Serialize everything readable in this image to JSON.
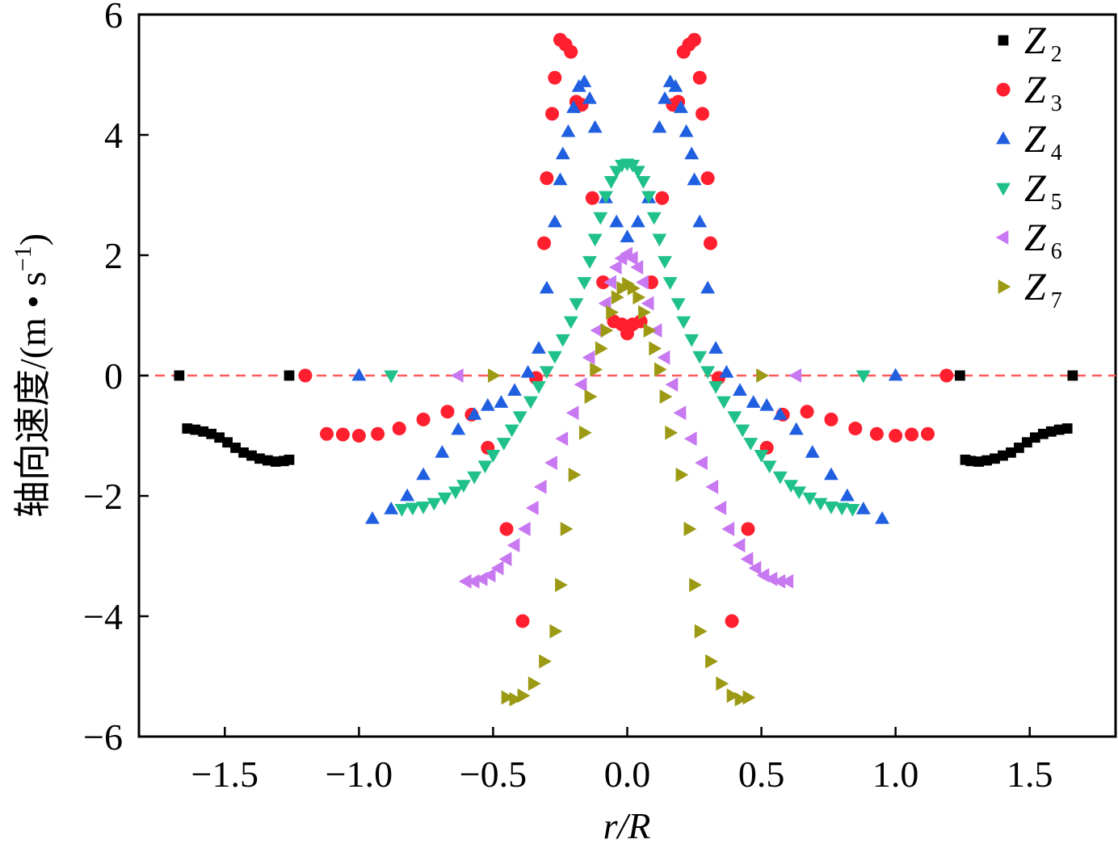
{
  "chart_data": {
    "type": "scatter",
    "title": "",
    "xlabel": "r/R",
    "ylabel": "轴向速度/(m·s⁻¹)",
    "ylabel_parts": {
      "main": "轴向速度/(m • s",
      "sup": "−1",
      "close": ")"
    },
    "xlim": [
      -1.82,
      1.82
    ],
    "ylim": [
      -6,
      6
    ],
    "xticks": [
      -1.5,
      -1.0,
      -0.5,
      0.0,
      0.5,
      1.0,
      1.5
    ],
    "xtick_labels": [
      "−1.5",
      "−1.0",
      "−0.5",
      "0.0",
      "0.5",
      "1.0",
      "1.5"
    ],
    "yticks": [
      -6,
      -4,
      -2,
      0,
      2,
      4,
      6
    ],
    "ytick_labels": [
      "−6",
      "−4",
      "−2",
      "0",
      "2",
      "4",
      "6"
    ],
    "grid": false,
    "legend_position": "top-right",
    "reference_line": {
      "y": 0,
      "color": "#ff5a5a",
      "style": "dashed"
    },
    "series": [
      {
        "name": "Z",
        "sub": "2",
        "marker": "square",
        "color": "#000000",
        "points": [
          [
            -1.67,
            0
          ],
          [
            -1.26,
            0
          ],
          [
            -1.64,
            -0.88
          ],
          [
            -1.61,
            -0.9
          ],
          [
            -1.58,
            -0.93
          ],
          [
            -1.55,
            -0.97
          ],
          [
            -1.52,
            -1.03
          ],
          [
            -1.49,
            -1.11
          ],
          [
            -1.46,
            -1.2
          ],
          [
            -1.43,
            -1.28
          ],
          [
            -1.4,
            -1.33
          ],
          [
            -1.37,
            -1.38
          ],
          [
            -1.34,
            -1.41
          ],
          [
            -1.31,
            -1.43
          ],
          [
            -1.28,
            -1.42
          ],
          [
            -1.26,
            -1.4
          ],
          [
            1.24,
            0
          ],
          [
            1.66,
            0
          ],
          [
            1.26,
            -1.4
          ],
          [
            1.28,
            -1.42
          ],
          [
            1.31,
            -1.43
          ],
          [
            1.34,
            -1.41
          ],
          [
            1.37,
            -1.38
          ],
          [
            1.4,
            -1.33
          ],
          [
            1.43,
            -1.28
          ],
          [
            1.46,
            -1.2
          ],
          [
            1.49,
            -1.11
          ],
          [
            1.52,
            -1.03
          ],
          [
            1.55,
            -0.97
          ],
          [
            1.58,
            -0.93
          ],
          [
            1.61,
            -0.9
          ],
          [
            1.64,
            -0.88
          ]
        ]
      },
      {
        "name": "Z",
        "sub": "3",
        "marker": "circle",
        "color": "#ff1f2e",
        "points": [
          [
            -1.2,
            0
          ],
          [
            -1.12,
            -0.97
          ],
          [
            -1.06,
            -0.98
          ],
          [
            -1.0,
            -1.0
          ],
          [
            -0.93,
            -0.97
          ],
          [
            -0.85,
            -0.88
          ],
          [
            -0.76,
            -0.73
          ],
          [
            -0.67,
            -0.6
          ],
          [
            -0.58,
            -0.65
          ],
          [
            -0.52,
            -1.2
          ],
          [
            -0.45,
            -2.55
          ],
          [
            -0.39,
            -4.08
          ],
          [
            -0.34,
            -0.04
          ],
          [
            -0.31,
            2.2
          ],
          [
            -0.3,
            3.28
          ],
          [
            -0.28,
            4.35
          ],
          [
            -0.27,
            4.95
          ],
          [
            -0.25,
            5.58
          ],
          [
            -0.23,
            5.5
          ],
          [
            -0.21,
            5.38
          ],
          [
            -0.19,
            4.55
          ],
          [
            -0.17,
            4.5
          ],
          [
            -0.13,
            2.95
          ],
          [
            -0.09,
            1.55
          ],
          [
            -0.05,
            0.9
          ],
          [
            -0.02,
            0.85
          ],
          [
            0,
            0.7
          ],
          [
            0.02,
            0.85
          ],
          [
            0.05,
            0.9
          ],
          [
            0.09,
            1.55
          ],
          [
            0.13,
            2.95
          ],
          [
            0.17,
            4.5
          ],
          [
            0.19,
            4.55
          ],
          [
            0.21,
            5.38
          ],
          [
            0.23,
            5.5
          ],
          [
            0.25,
            5.58
          ],
          [
            0.27,
            4.95
          ],
          [
            0.28,
            4.35
          ],
          [
            0.3,
            3.28
          ],
          [
            0.31,
            2.2
          ],
          [
            0.34,
            -0.04
          ],
          [
            0.39,
            -4.08
          ],
          [
            0.45,
            -2.55
          ],
          [
            0.52,
            -1.2
          ],
          [
            0.58,
            -0.65
          ],
          [
            0.67,
            -0.6
          ],
          [
            0.76,
            -0.73
          ],
          [
            0.85,
            -0.88
          ],
          [
            0.93,
            -0.97
          ],
          [
            1.0,
            -1.0
          ],
          [
            1.06,
            -0.98
          ],
          [
            1.12,
            -0.97
          ],
          [
            1.19,
            0
          ]
        ]
      },
      {
        "name": "Z",
        "sub": "4",
        "marker": "triangle-up",
        "color": "#1f5fe0",
        "points": [
          [
            -1.0,
            0
          ],
          [
            -0.95,
            -2.38
          ],
          [
            -0.88,
            -2.22
          ],
          [
            -0.82,
            -2.0
          ],
          [
            -0.76,
            -1.65
          ],
          [
            -0.69,
            -1.28
          ],
          [
            -0.63,
            -0.9
          ],
          [
            -0.57,
            -0.65
          ],
          [
            -0.52,
            -0.5
          ],
          [
            -0.47,
            -0.45
          ],
          [
            -0.42,
            -0.25
          ],
          [
            -0.37,
            0.05
          ],
          [
            -0.33,
            0.45
          ],
          [
            -0.3,
            1.45
          ],
          [
            -0.27,
            2.55
          ],
          [
            -0.25,
            3.25
          ],
          [
            -0.24,
            3.68
          ],
          [
            -0.22,
            4.05
          ],
          [
            -0.2,
            4.45
          ],
          [
            -0.18,
            4.8
          ],
          [
            -0.16,
            4.88
          ],
          [
            -0.14,
            4.6
          ],
          [
            -0.12,
            4.12
          ],
          [
            -0.08,
            2.95
          ],
          [
            -0.04,
            2.55
          ],
          [
            0,
            2.3
          ],
          [
            0.04,
            2.55
          ],
          [
            0.08,
            2.95
          ],
          [
            0.12,
            4.12
          ],
          [
            0.14,
            4.6
          ],
          [
            0.16,
            4.88
          ],
          [
            0.18,
            4.8
          ],
          [
            0.2,
            4.45
          ],
          [
            0.22,
            4.05
          ],
          [
            0.24,
            3.68
          ],
          [
            0.25,
            3.25
          ],
          [
            0.27,
            2.55
          ],
          [
            0.3,
            1.45
          ],
          [
            0.33,
            0.45
          ],
          [
            0.37,
            0.05
          ],
          [
            0.42,
            -0.25
          ],
          [
            0.47,
            -0.45
          ],
          [
            0.52,
            -0.5
          ],
          [
            0.57,
            -0.65
          ],
          [
            0.63,
            -0.9
          ],
          [
            0.69,
            -1.28
          ],
          [
            0.76,
            -1.65
          ],
          [
            0.82,
            -2.0
          ],
          [
            0.88,
            -2.22
          ],
          [
            0.95,
            -2.38
          ],
          [
            1.0,
            0
          ]
        ]
      },
      {
        "name": "Z",
        "sub": "5",
        "marker": "triangle-down",
        "color": "#1fc08a",
        "points": [
          [
            -0.88,
            0
          ],
          [
            -0.84,
            -2.22
          ],
          [
            -0.8,
            -2.2
          ],
          [
            -0.76,
            -2.18
          ],
          [
            -0.72,
            -2.12
          ],
          [
            -0.68,
            -2.03
          ],
          [
            -0.64,
            -1.93
          ],
          [
            -0.61,
            -1.82
          ],
          [
            -0.57,
            -1.68
          ],
          [
            -0.53,
            -1.5
          ],
          [
            -0.5,
            -1.32
          ],
          [
            -0.46,
            -1.12
          ],
          [
            -0.43,
            -0.9
          ],
          [
            -0.4,
            -0.68
          ],
          [
            -0.36,
            -0.43
          ],
          [
            -0.33,
            -0.18
          ],
          [
            -0.3,
            0.07
          ],
          [
            -0.27,
            0.32
          ],
          [
            -0.24,
            0.6
          ],
          [
            -0.21,
            0.9
          ],
          [
            -0.19,
            1.2
          ],
          [
            -0.16,
            1.55
          ],
          [
            -0.14,
            1.9
          ],
          [
            -0.12,
            2.27
          ],
          [
            -0.1,
            2.63
          ],
          [
            -0.08,
            2.98
          ],
          [
            -0.06,
            3.23
          ],
          [
            -0.04,
            3.4
          ],
          [
            -0.02,
            3.5
          ],
          [
            0,
            3.52
          ],
          [
            0.02,
            3.5
          ],
          [
            0.04,
            3.4
          ],
          [
            0.06,
            3.23
          ],
          [
            0.08,
            2.98
          ],
          [
            0.1,
            2.63
          ],
          [
            0.12,
            2.27
          ],
          [
            0.14,
            1.9
          ],
          [
            0.16,
            1.55
          ],
          [
            0.19,
            1.2
          ],
          [
            0.21,
            0.9
          ],
          [
            0.24,
            0.6
          ],
          [
            0.27,
            0.32
          ],
          [
            0.3,
            0.07
          ],
          [
            0.33,
            -0.18
          ],
          [
            0.36,
            -0.43
          ],
          [
            0.4,
            -0.68
          ],
          [
            0.43,
            -0.9
          ],
          [
            0.46,
            -1.12
          ],
          [
            0.5,
            -1.32
          ],
          [
            0.53,
            -1.5
          ],
          [
            0.57,
            -1.68
          ],
          [
            0.61,
            -1.82
          ],
          [
            0.64,
            -1.93
          ],
          [
            0.68,
            -2.03
          ],
          [
            0.72,
            -2.12
          ],
          [
            0.76,
            -2.18
          ],
          [
            0.8,
            -2.2
          ],
          [
            0.84,
            -2.22
          ],
          [
            0.88,
            0
          ]
        ]
      },
      {
        "name": "Z",
        "sub": "6",
        "marker": "triangle-left",
        "color": "#c878f0",
        "points": [
          [
            -0.63,
            0
          ],
          [
            -0.6,
            -3.42
          ],
          [
            -0.57,
            -3.42
          ],
          [
            -0.54,
            -3.38
          ],
          [
            -0.51,
            -3.32
          ],
          [
            -0.48,
            -3.2
          ],
          [
            -0.45,
            -3.05
          ],
          [
            -0.42,
            -2.82
          ],
          [
            -0.38,
            -2.55
          ],
          [
            -0.35,
            -2.2
          ],
          [
            -0.32,
            -1.85
          ],
          [
            -0.28,
            -1.45
          ],
          [
            -0.24,
            -1.05
          ],
          [
            -0.2,
            -0.62
          ],
          [
            -0.17,
            -0.15
          ],
          [
            -0.14,
            0.3
          ],
          [
            -0.11,
            0.75
          ],
          [
            -0.08,
            1.2
          ],
          [
            -0.06,
            1.55
          ],
          [
            -0.04,
            1.8
          ],
          [
            -0.02,
            1.95
          ],
          [
            0,
            2.02
          ],
          [
            0.02,
            1.95
          ],
          [
            0.04,
            1.8
          ],
          [
            0.06,
            1.55
          ],
          [
            0.08,
            1.2
          ],
          [
            0.11,
            0.75
          ],
          [
            0.14,
            0.3
          ],
          [
            0.17,
            -0.15
          ],
          [
            0.2,
            -0.62
          ],
          [
            0.24,
            -1.05
          ],
          [
            0.28,
            -1.45
          ],
          [
            0.32,
            -1.85
          ],
          [
            0.35,
            -2.2
          ],
          [
            0.38,
            -2.55
          ],
          [
            0.42,
            -2.82
          ],
          [
            0.45,
            -3.05
          ],
          [
            0.48,
            -3.2
          ],
          [
            0.51,
            -3.32
          ],
          [
            0.54,
            -3.38
          ],
          [
            0.57,
            -3.42
          ],
          [
            0.6,
            -3.42
          ],
          [
            0.63,
            0
          ]
        ]
      },
      {
        "name": "Z",
        "sub": "7",
        "marker": "triangle-right",
        "color": "#9c9a14",
        "points": [
          [
            -0.5,
            0
          ],
          [
            -0.45,
            -5.35
          ],
          [
            -0.42,
            -5.38
          ],
          [
            -0.39,
            -5.32
          ],
          [
            -0.35,
            -5.12
          ],
          [
            -0.31,
            -4.75
          ],
          [
            -0.27,
            -4.25
          ],
          [
            -0.25,
            -3.48
          ],
          [
            -0.23,
            -2.55
          ],
          [
            -0.2,
            -1.65
          ],
          [
            -0.16,
            -0.95
          ],
          [
            -0.14,
            -0.35
          ],
          [
            -0.12,
            0.1
          ],
          [
            -0.1,
            0.45
          ],
          [
            -0.08,
            0.75
          ],
          [
            -0.06,
            1.05
          ],
          [
            -0.04,
            1.3
          ],
          [
            -0.02,
            1.45
          ],
          [
            0,
            1.52
          ],
          [
            0.02,
            1.45
          ],
          [
            0.04,
            1.3
          ],
          [
            0.06,
            1.05
          ],
          [
            0.08,
            0.75
          ],
          [
            0.1,
            0.45
          ],
          [
            0.12,
            0.1
          ],
          [
            0.14,
            -0.35
          ],
          [
            0.16,
            -0.95
          ],
          [
            0.2,
            -1.65
          ],
          [
            0.23,
            -2.55
          ],
          [
            0.25,
            -3.48
          ],
          [
            0.27,
            -4.25
          ],
          [
            0.31,
            -4.75
          ],
          [
            0.35,
            -5.12
          ],
          [
            0.39,
            -5.32
          ],
          [
            0.42,
            -5.38
          ],
          [
            0.45,
            -5.35
          ],
          [
            0.5,
            0
          ]
        ]
      }
    ]
  }
}
